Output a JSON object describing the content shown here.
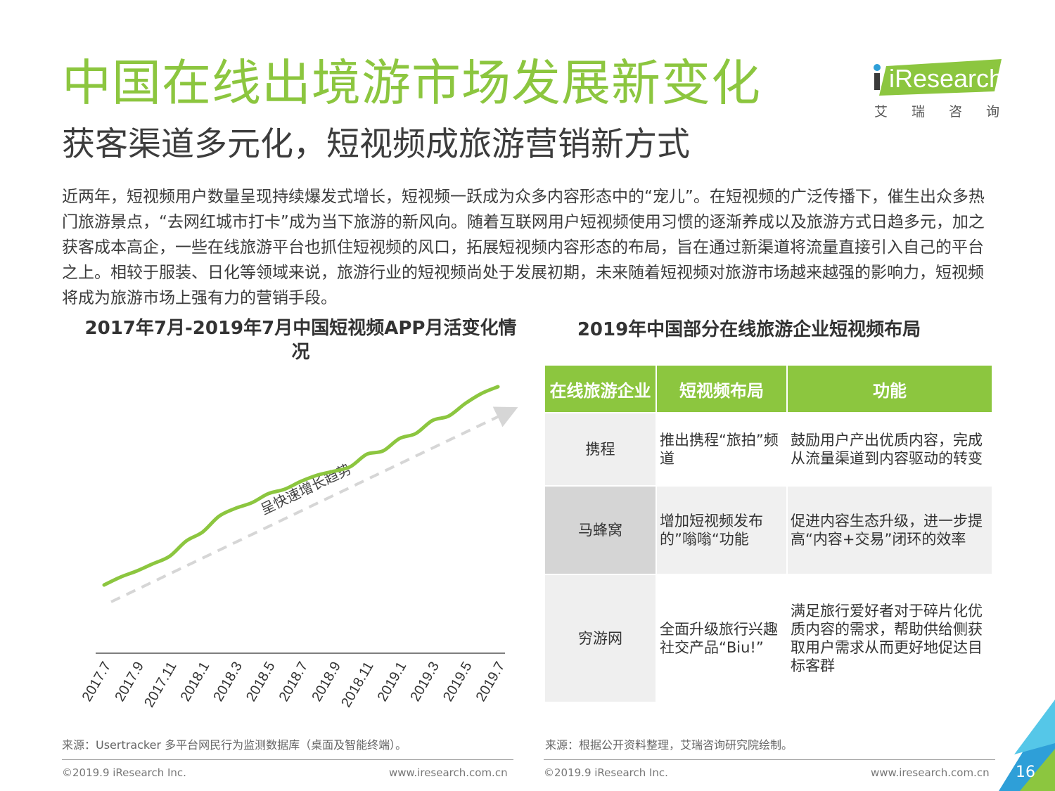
{
  "page": {
    "title": "中国在线出境游市场发展新变化",
    "subtitle": "获客渠道多元化，短视频成旅游营销新方式",
    "intro": "近两年，短视频用户数量呈现持续爆发式增长，短视频一跃成为众多内容形态中的“宠儿”。在短视频的广泛传播下，催生出众多热门旅游景点，“去网红城市打卡”成为当下旅游的新风向。随着互联网用户短视频使用习惯的逐渐养成以及旅游方式日趋多元，加之获客成本高企，一些在线旅游平台也抓住短视频的风口，拓展短视频内容形态的布局，旨在通过新渠道将流量直接引入自己的平台之上。相较于服装、日化等领域来说，旅游行业的短视频尚处于发展初期，未来随着短视频对旅游市场越来越强的影响力，短视频将成为旅游市场上强有力的营销手段。",
    "page_number": "16"
  },
  "logo": {
    "word": "iResearch",
    "sub": "艾瑞咨询"
  },
  "chart_data": {
    "type": "line",
    "title": "2017年7月-2019年7月中国短视频APP月活变化情况",
    "categories": [
      "2017.7",
      "2017.9",
      "2017.11",
      "2018.1",
      "2018.3",
      "2018.5",
      "2018.7",
      "2018.9",
      "2018.11",
      "2019.1",
      "2019.3",
      "2019.5",
      "2019.7"
    ],
    "x": [
      0,
      1,
      2,
      3,
      4,
      5,
      6,
      7,
      8,
      9,
      10,
      11,
      12,
      13,
      14,
      15,
      16,
      17,
      18,
      19,
      20,
      21,
      22,
      23,
      24
    ],
    "values": [
      2.0,
      9.0,
      14.5,
      21.0,
      27.5,
      41.0,
      49.0,
      63.0,
      70.0,
      75.0,
      83.0,
      87.0,
      94.0,
      99.5,
      103.0,
      107.0,
      118.0,
      121.0,
      132.0,
      136.5,
      148.0,
      152.0,
      163.0,
      172.0,
      178.0
    ],
    "y_axis_shown": false,
    "arrow_annotation": "呈快速增长趋势",
    "line_color": "#8cc63f",
    "arrow_color": "#d6d6d6"
  },
  "table": {
    "title": "2019年中国部分在线旅游企业短视频布局",
    "headers": [
      "在线旅游企业",
      "短视频布局",
      "功能"
    ],
    "rows": [
      {
        "company": "携程",
        "layout": "推出携程“旅拍”频道",
        "function": "鼓励用户产出优质内容，完成从流量渠道到内容驱动的转变"
      },
      {
        "company": "马蜂窝",
        "layout": "增加短视频发布的”嗡嗡“功能",
        "function": "促进内容生态升级，进一步提高“内容+交易”闭环的效率"
      },
      {
        "company": "穷游网",
        "layout": "全面升级旅行兴趣社交产品“Biu!”",
        "function": "满足旅行爱好者对于碎片化优质内容的需求，帮助供给侧获取用户需求从而更好地促达目标客群"
      }
    ]
  },
  "footer": {
    "left_source": "来源：Usertracker 多平台网民行为监测数据库（桌面及智能终端）。",
    "right_source": "来源：根据公开资料整理，艾瑞咨询研究院绘制。",
    "copyright": "©2019.9 iResearch Inc.",
    "url": "www.iresearch.com.cn"
  },
  "colors": {
    "brand_green": "#8cc63f",
    "corner_blue": "#2e9fd8",
    "corner_cyan": "#55c7e8"
  }
}
